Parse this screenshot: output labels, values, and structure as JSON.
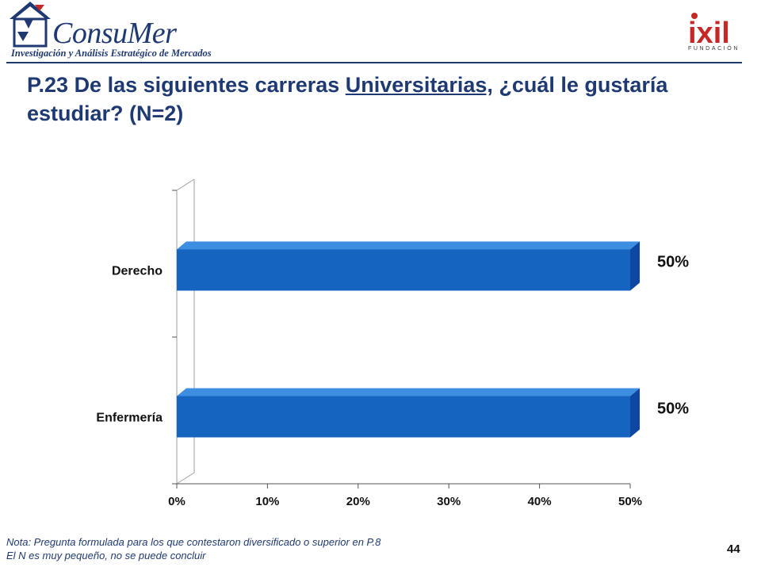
{
  "header": {
    "logo_name": "ConsuMer",
    "logo_tagline": "Investigación y Análisis Estratégico de Mercados",
    "partner_logo": "ixil",
    "partner_sub": "FUNDACIÓN"
  },
  "title": {
    "prefix": "P.23 De las siguientes carreras ",
    "underlined": "Universitarias,",
    "suffix": " ¿cuál le gustaría estudiar? (N=2)"
  },
  "chart_data": {
    "type": "bar",
    "orientation": "horizontal",
    "style": "3d",
    "categories": [
      "Derecho",
      "Enfermería"
    ],
    "values": [
      50,
      50
    ],
    "data_labels": [
      "50%",
      "50%"
    ],
    "x_ticks": [
      "0%",
      "10%",
      "20%",
      "30%",
      "40%",
      "50%"
    ],
    "xlim": [
      0,
      50
    ],
    "bar_color": "#1565c0",
    "grid": false,
    "legend": false
  },
  "footnote": {
    "line1": "Nota: Pregunta formulada para los que contestaron diversificado o superior en P.8",
    "line2": "El N es muy pequeño, no se puede concluir"
  },
  "page_number": "44"
}
